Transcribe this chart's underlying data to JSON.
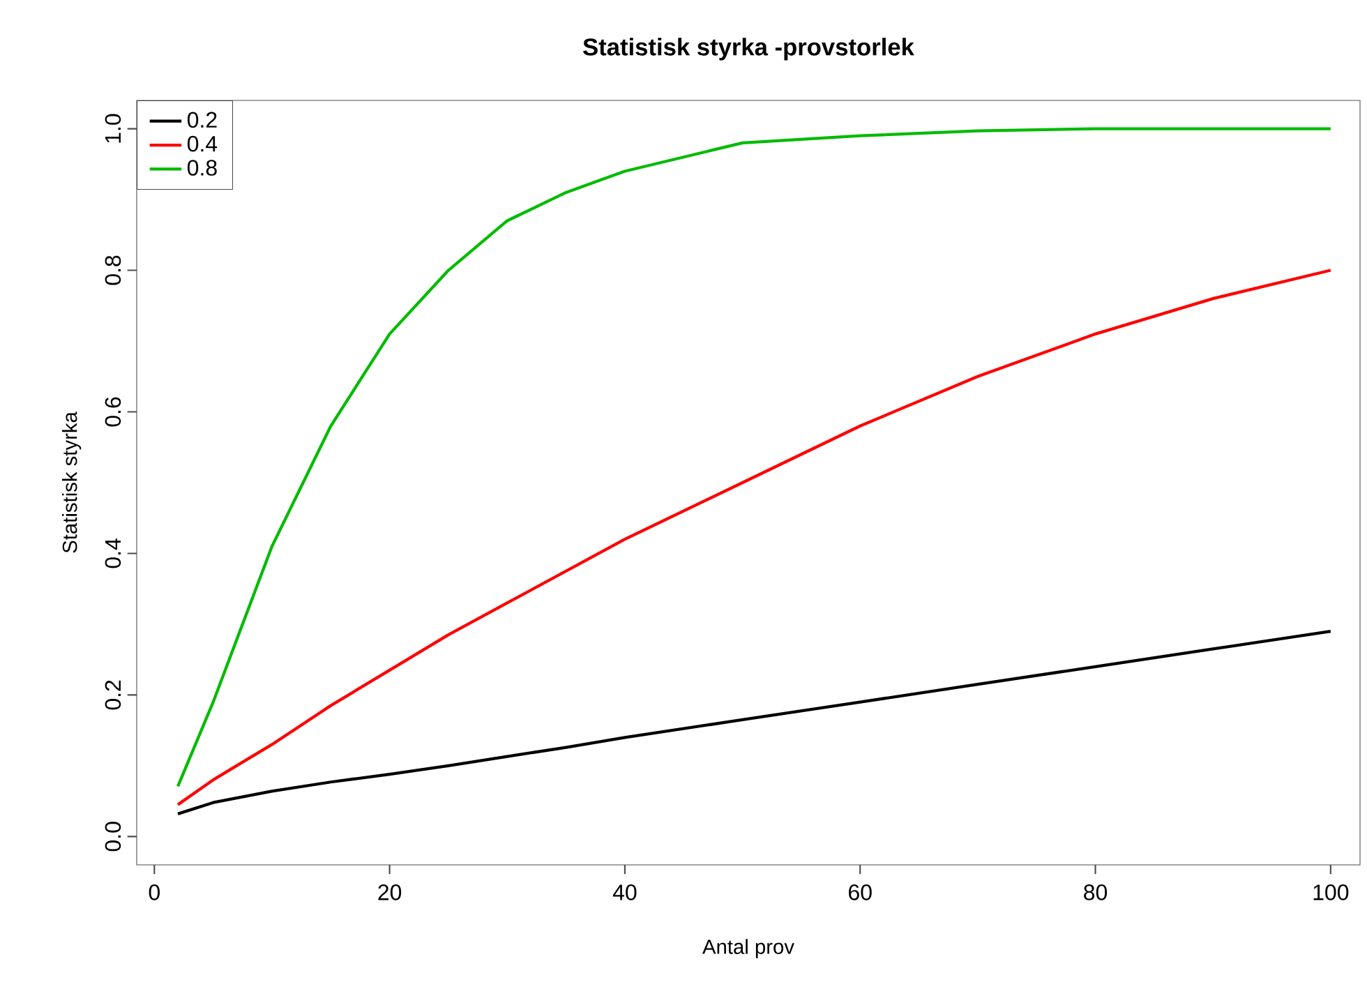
{
  "chart_data": {
    "type": "line",
    "title": "Statistisk styrka -provstorlek",
    "xlabel": "Antal prov",
    "ylabel": "Statistisk styrka",
    "xlim": [
      -1.5,
      102.5
    ],
    "ylim": [
      -0.04,
      1.04
    ],
    "xticks": [
      0,
      20,
      40,
      60,
      80,
      100
    ],
    "yticks": [
      {
        "value": 0,
        "label": "0.0"
      },
      0.2,
      0.4,
      0.6,
      0.8,
      {
        "value": 1,
        "label": "1.0"
      }
    ],
    "x": [
      2,
      5,
      10,
      15,
      20,
      25,
      30,
      35,
      40,
      50,
      60,
      70,
      80,
      90,
      100
    ],
    "series": [
      {
        "name": "0.2",
        "color": "#000000",
        "values": [
          0.032,
          0.048,
          0.064,
          0.077,
          0.088,
          0.1,
          0.113,
          0.126,
          0.14,
          0.165,
          0.19,
          0.215,
          0.24,
          0.265,
          0.29
        ]
      },
      {
        "name": "0.4",
        "color": "#ff0000",
        "values": [
          0.045,
          0.08,
          0.13,
          0.185,
          0.235,
          0.285,
          0.33,
          0.375,
          0.42,
          0.5,
          0.58,
          0.65,
          0.71,
          0.76,
          0.8
        ]
      },
      {
        "name": "0.8",
        "color": "#00bb00",
        "values": [
          0.071,
          0.19,
          0.41,
          0.58,
          0.71,
          0.8,
          0.87,
          0.91,
          0.94,
          0.98,
          0.99,
          0.997,
          1.0,
          1.0,
          1.0
        ]
      }
    ],
    "legend": "top left",
    "grid": false,
    "marker": "none",
    "line_style": "solid"
  }
}
